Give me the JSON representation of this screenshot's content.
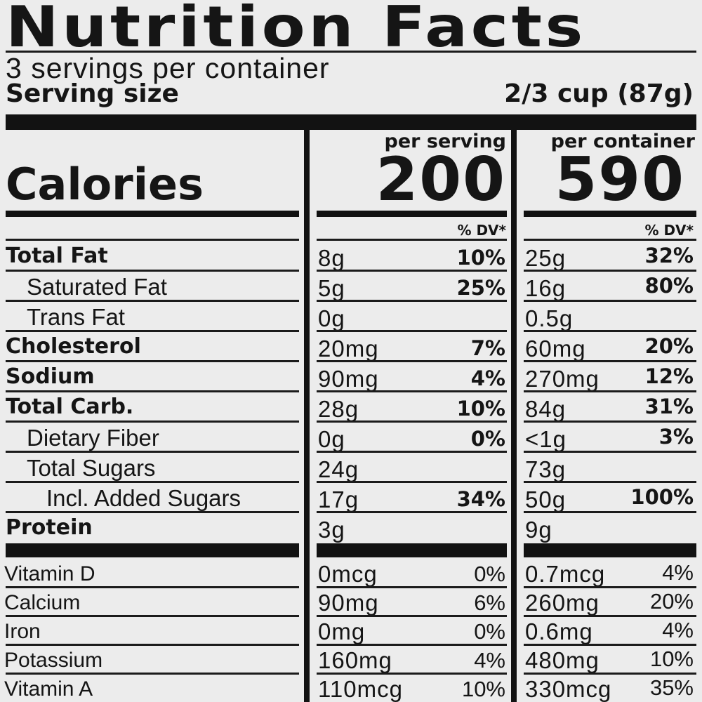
{
  "header": {
    "title": "Nutrition Facts",
    "servings": "3 servings per container",
    "serving_size_label": "Serving size",
    "serving_size_value": "2/3 cup (87g)"
  },
  "calories": {
    "label": "Calories",
    "per_serving_label": "per serving",
    "per_serving_value": "200",
    "per_container_label": "per container",
    "per_container_value": "590",
    "dv_label": "% DV*"
  },
  "nutrients": [
    {
      "name": "Total Fat",
      "bold": true,
      "indent": 0,
      "serving": "8g",
      "serving_dv": "10%",
      "container": "25g",
      "container_dv": "32%"
    },
    {
      "name": "Saturated Fat",
      "bold": false,
      "indent": 1,
      "serving": "5g",
      "serving_dv": "25%",
      "container": "16g",
      "container_dv": "80%"
    },
    {
      "name": "Trans Fat",
      "bold": false,
      "indent": 1,
      "serving": "0g",
      "serving_dv": "",
      "container": "0.5g",
      "container_dv": ""
    },
    {
      "name": "Cholesterol",
      "bold": true,
      "indent": 0,
      "serving": "20mg",
      "serving_dv": "7%",
      "container": "60mg",
      "container_dv": "20%"
    },
    {
      "name": "Sodium",
      "bold": true,
      "indent": 0,
      "serving": "90mg",
      "serving_dv": "4%",
      "container": "270mg",
      "container_dv": "12%"
    },
    {
      "name": "Total Carb.",
      "bold": true,
      "indent": 0,
      "serving": "28g",
      "serving_dv": "10%",
      "container": "84g",
      "container_dv": "31%"
    },
    {
      "name": "Dietary Fiber",
      "bold": false,
      "indent": 1,
      "serving": "0g",
      "serving_dv": "0%",
      "container": "<1g",
      "container_dv": "3%"
    },
    {
      "name": "Total Sugars",
      "bold": false,
      "indent": 1,
      "serving": "24g",
      "serving_dv": "",
      "container": "73g",
      "container_dv": ""
    },
    {
      "name": "Incl. Added Sugars",
      "bold": false,
      "indent": 2,
      "serving": "17g",
      "serving_dv": "34%",
      "container": "50g",
      "container_dv": "100%"
    },
    {
      "name": "Protein",
      "bold": true,
      "indent": 0,
      "serving": "3g",
      "serving_dv": "",
      "container": "9g",
      "container_dv": ""
    }
  ],
  "vitamins": [
    {
      "name": "Vitamin D",
      "serving": "0mcg",
      "serving_dv": "0%",
      "container": "0.7mcg",
      "container_dv": "4%"
    },
    {
      "name": "Calcium",
      "serving": "90mg",
      "serving_dv": "6%",
      "container": "260mg",
      "container_dv": "20%"
    },
    {
      "name": "Iron",
      "serving": "0mg",
      "serving_dv": "0%",
      "container": "0.6mg",
      "container_dv": "4%"
    },
    {
      "name": "Potassium",
      "serving": "160mg",
      "serving_dv": "4%",
      "container": "480mg",
      "container_dv": "10%"
    },
    {
      "name": "Vitamin A",
      "serving": "110mcg",
      "serving_dv": "10%",
      "container": "330mcg",
      "container_dv": "35%"
    }
  ]
}
